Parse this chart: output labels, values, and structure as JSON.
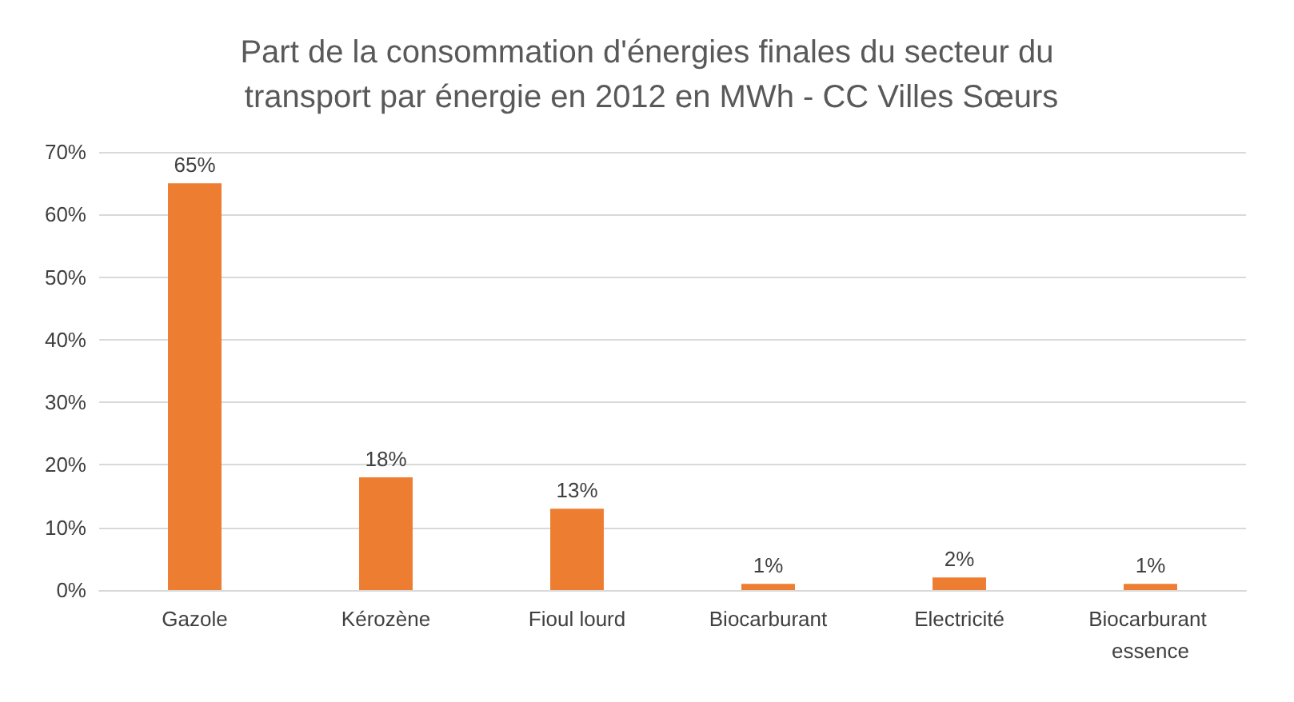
{
  "chart_data": {
    "type": "bar",
    "title": "Part de la consommation d'énergies finales du secteur du transport par énergie en 2012 en MWh - CC Villes Sœurs",
    "categories": [
      "Gazole",
      "Kérozène",
      "Fioul lourd",
      "Biocarburant",
      "Electricité",
      "Biocarburant essence"
    ],
    "values": [
      65,
      18,
      13,
      1,
      2,
      1
    ],
    "value_labels": [
      "65%",
      "18%",
      "13%",
      "1%",
      "2%",
      "1%"
    ],
    "color": "#ed7d31",
    "ylim": [
      0,
      70
    ],
    "yticks": [
      {
        "value": 0,
        "label": "0%"
      },
      {
        "value": 10,
        "label": "10%"
      },
      {
        "value": 20,
        "label": "20%"
      },
      {
        "value": 30,
        "label": "30%"
      },
      {
        "value": 40,
        "label": "40%"
      },
      {
        "value": 50,
        "label": "50%"
      },
      {
        "value": 60,
        "label": "60%"
      },
      {
        "value": 70,
        "label": "70%"
      }
    ],
    "grid": "y"
  }
}
